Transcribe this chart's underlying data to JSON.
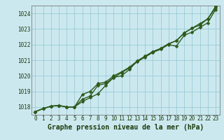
{
  "title": "Graphe pression niveau de la mer (hPa)",
  "bg_color": "#cce8ef",
  "grid_color": "#99ccd6",
  "line_color": "#2d5a1b",
  "xlim": [
    -0.5,
    23.5
  ],
  "ylim": [
    1017.5,
    1024.5
  ],
  "xticks": [
    0,
    1,
    2,
    3,
    4,
    5,
    6,
    7,
    8,
    9,
    10,
    11,
    12,
    13,
    14,
    15,
    16,
    17,
    18,
    19,
    20,
    21,
    22,
    23
  ],
  "yticks": [
    1018,
    1019,
    1020,
    1021,
    1022,
    1023,
    1024
  ],
  "series": [
    [
      1017.7,
      1017.9,
      1018.05,
      1018.1,
      1018.0,
      1018.0,
      1018.5,
      1018.7,
      1019.4,
      1019.5,
      1019.9,
      1020.2,
      1020.5,
      1020.9,
      1021.2,
      1021.5,
      1021.7,
      1022.0,
      1021.9,
      1022.6,
      1022.8,
      1023.1,
      1023.4,
      1024.25
    ],
    [
      1017.7,
      1017.9,
      1018.05,
      1018.1,
      1018.0,
      1018.0,
      1018.8,
      1019.0,
      1019.5,
      1019.6,
      1020.0,
      1020.25,
      1020.55,
      1020.95,
      1021.25,
      1021.55,
      1021.75,
      1022.05,
      1022.25,
      1022.75,
      1023.05,
      1023.25,
      1023.65,
      1024.35
    ],
    [
      1017.7,
      1017.9,
      1018.05,
      1018.1,
      1018.0,
      1018.0,
      1018.35,
      1018.6,
      1018.85,
      1019.4,
      1019.9,
      1020.0,
      1020.4,
      1020.95,
      1021.25,
      1021.55,
      1021.75,
      1022.05,
      1022.25,
      1022.75,
      1023.05,
      1023.35,
      1023.65,
      1024.45
    ]
  ],
  "marker": "D",
  "markersize": 2.5,
  "linewidth": 1.0,
  "title_fontsize": 7,
  "tick_fontsize": 5.5
}
